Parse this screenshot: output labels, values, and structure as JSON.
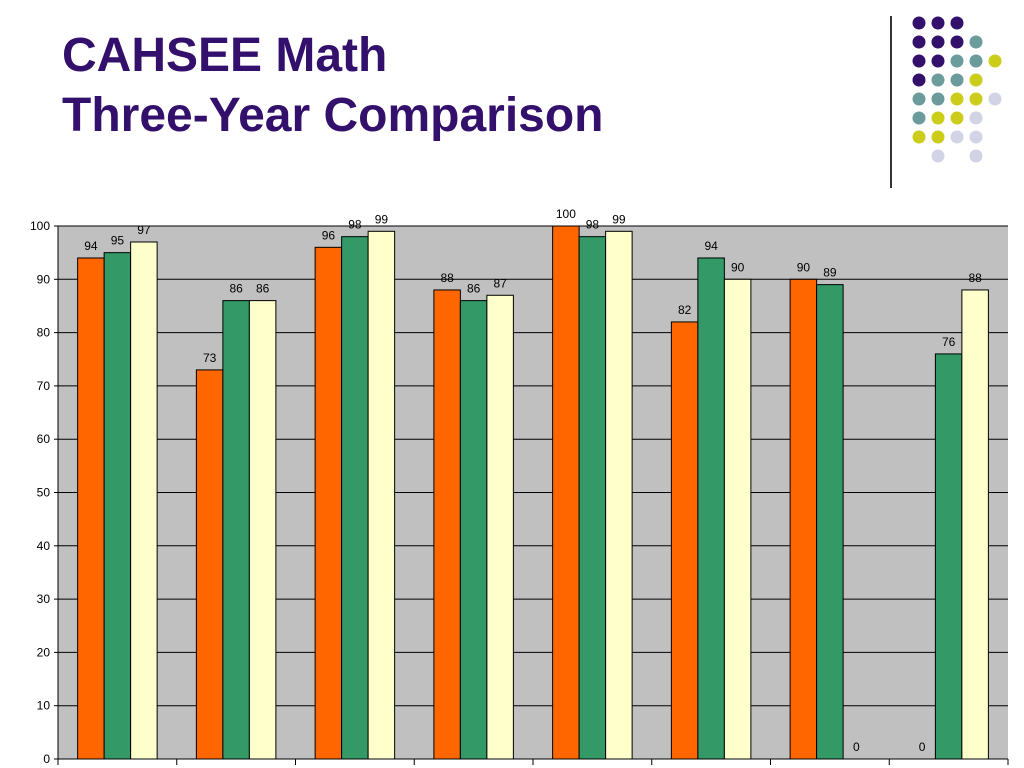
{
  "slide": {
    "title_line1": "CAHSEE Math",
    "title_line2": "Three-Year Comparison"
  },
  "decoration": {
    "dot_colors": [
      "#33106b",
      "#6b9b9b",
      "#cccc1a",
      "#d3d3e6"
    ]
  },
  "chart_data": {
    "type": "bar",
    "title": "",
    "xlabel": "",
    "ylabel": "",
    "ylim": [
      0,
      100
    ],
    "yticks": [
      0,
      10,
      20,
      30,
      40,
      50,
      60,
      70,
      80,
      90,
      100
    ],
    "grid": true,
    "legend": "none",
    "plot_background": "#c0c0c0",
    "categories": [
      "",
      "",
      "",
      "",
      "",
      "",
      "",
      ""
    ],
    "series": [
      {
        "color": "#ff6600",
        "values": [
          94,
          73,
          96,
          88,
          100,
          82,
          90,
          0
        ]
      },
      {
        "color": "#339966",
        "values": [
          95,
          86,
          98,
          86,
          98,
          94,
          89,
          76
        ]
      },
      {
        "color": "#ffffcc",
        "values": [
          97,
          86,
          99,
          87,
          99,
          90,
          0,
          88
        ]
      }
    ]
  }
}
